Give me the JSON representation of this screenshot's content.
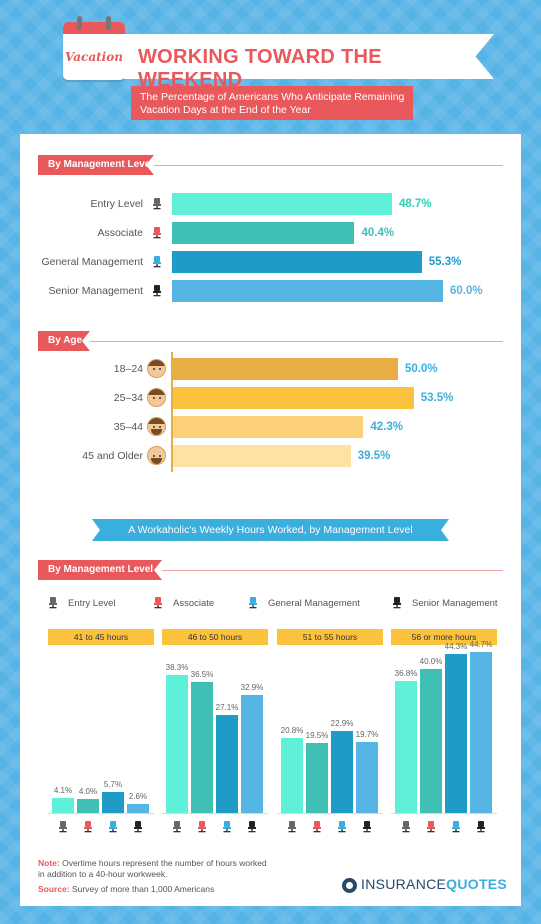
{
  "header": {
    "calendar_word": "Vacation",
    "title": "WORKING TOWARD THE WEEKEND",
    "subtitle": "The Percentage of Americans Who Anticipate Remaining Vacation Days at the End of the Year"
  },
  "colors": {
    "accent_red": "#e9595c",
    "teal_light": "#5ef0d8",
    "teal": "#40bfb5",
    "blue": "#1f9bc8",
    "blue_light": "#55b6e6",
    "age_1": "#e8ad45",
    "age_2": "#fbc23e",
    "age_3": "#fbd077",
    "age_4": "#fde2a4"
  },
  "icons": {
    "calendar": "calendar-icon",
    "chair": "office-chair-icon",
    "face": "man-face-icon",
    "brand": "insurancequotes-logo-icon"
  },
  "chart_data": [
    {
      "type": "bar",
      "orientation": "horizontal",
      "title": "By Management Level",
      "categories": [
        "Entry Level",
        "Associate",
        "General Management",
        "Senior Management"
      ],
      "values": [
        48.7,
        40.4,
        55.3,
        60.0
      ],
      "labels": [
        "48.7%",
        "40.4%",
        "55.3%",
        "60.0%"
      ],
      "colors": [
        "#5ef0d8",
        "#40bfb5",
        "#1f9bc8",
        "#55b6e6"
      ],
      "value_colors": [
        "#2fcfb5",
        "#40bfb5",
        "#1f9bc8",
        "#55b6e6"
      ],
      "chair_colors": [
        "#666666",
        "#e9595c",
        "#3aaedd",
        "#222222"
      ],
      "xlim": [
        0,
        60
      ]
    },
    {
      "type": "bar",
      "orientation": "horizontal",
      "title": "By Age",
      "categories": [
        "18–24",
        "25–34",
        "35–44",
        "45 and Older"
      ],
      "values": [
        50.0,
        53.5,
        42.3,
        39.5
      ],
      "labels": [
        "50.0%",
        "53.5%",
        "42.3%",
        "39.5%"
      ],
      "colors": [
        "#e8ad45",
        "#fbc23e",
        "#fbd077",
        "#fde2a4"
      ],
      "value_colors": [
        "#3aaedd",
        "#3aaedd",
        "#3aaedd",
        "#3aaedd"
      ],
      "xlim": [
        0,
        60
      ]
    },
    {
      "type": "bar",
      "orientation": "vertical",
      "title": "A Workaholic's Weekly Hours Worked, by Management Level",
      "section_label": "By Management Level",
      "categories": [
        "41 to 45 hours",
        "46 to 50 hours",
        "51 to 55 hours",
        "56 or more hours"
      ],
      "series": [
        {
          "name": "Entry Level",
          "color": "#5ef0d8",
          "chair_color": "#666666",
          "values": [
            4.1,
            38.3,
            20.8,
            36.8
          ],
          "labels": [
            "4.1%",
            "38.3%",
            "20.8%",
            "36.8%"
          ]
        },
        {
          "name": "Associate",
          "color": "#40bfb5",
          "chair_color": "#e9595c",
          "values": [
            4.0,
            36.5,
            19.5,
            40.0
          ],
          "labels": [
            "4.0%",
            "36.5%",
            "19.5%",
            "40.0%"
          ]
        },
        {
          "name": "General Management",
          "color": "#1f9bc8",
          "chair_color": "#3aaedd",
          "values": [
            5.7,
            27.1,
            22.9,
            44.3
          ],
          "labels": [
            "5.7%",
            "27.1%",
            "22.9%",
            "44.3%"
          ]
        },
        {
          "name": "Senior Management",
          "color": "#55b6e6",
          "chair_color": "#222222",
          "values": [
            2.6,
            32.9,
            19.7,
            44.7
          ],
          "labels": [
            "2.6%",
            "32.9%",
            "19.7%",
            "44.7%"
          ]
        }
      ],
      "ylim": [
        0,
        45
      ],
      "legend_position": "top"
    }
  ],
  "footer": {
    "note_label": "Note:",
    "note_text": " Overtime hours represent the number of hours worked in addition to a 40-hour workweek.",
    "source_label": "Source:",
    "source_text": " Survey of more than 1,000 Americans",
    "brand_part1": "INSURANCE",
    "brand_part2": "QUOTES"
  }
}
